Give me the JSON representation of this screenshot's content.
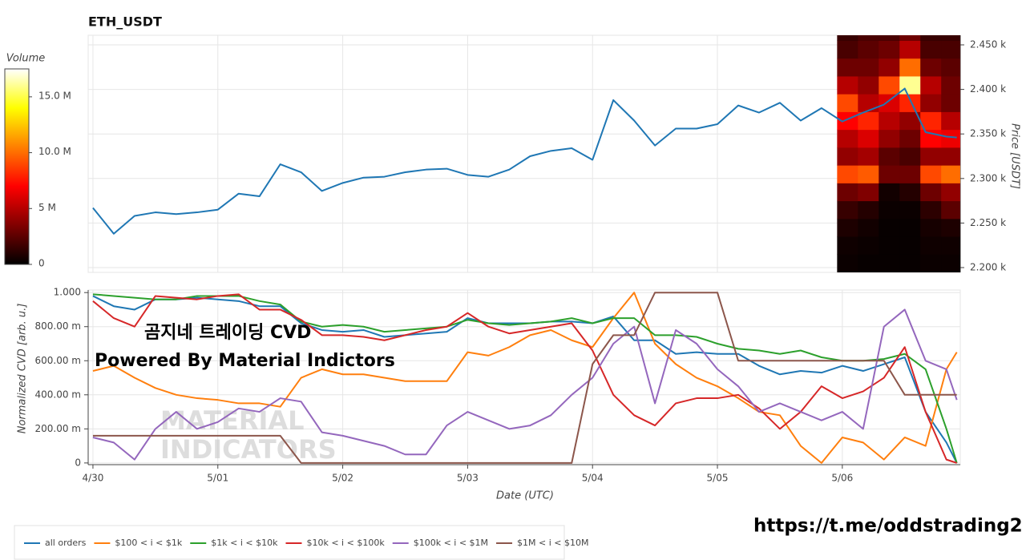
{
  "chart_data": [
    {
      "type": "line",
      "title": "ETH_USDT",
      "y_label": "Price [USDT]",
      "xlim": [
        "4/29 23:05",
        "5/06 22:40"
      ],
      "ylim": [
        2194.6,
        2460.8
      ],
      "yticks": [
        {
          "value": 2200,
          "label": "2.200 k"
        },
        {
          "value": 2250,
          "label": "2.250 k"
        },
        {
          "value": 2300,
          "label": "2.300 k"
        },
        {
          "value": 2350,
          "label": "2.350 k"
        },
        {
          "value": 2400,
          "label": "2.400 k"
        },
        {
          "value": 2450,
          "label": "2.450 k"
        }
      ],
      "grid": true,
      "x": [
        "4/30 00:00",
        "4/30 04:00",
        "4/30 08:00",
        "4/30 12:00",
        "4/30 16:00",
        "4/30 20:00",
        "5/01 00:00",
        "5/01 04:00",
        "5/01 08:00",
        "5/01 12:00",
        "5/01 16:00",
        "5/01 20:00",
        "5/02 00:00",
        "5/02 04:00",
        "5/02 08:00",
        "5/02 12:00",
        "5/02 16:00",
        "5/02 20:00",
        "5/03 00:00",
        "5/03 04:00",
        "5/03 08:00",
        "5/03 12:00",
        "5/03 16:00",
        "5/03 20:00",
        "5/04 00:00",
        "5/04 04:00",
        "5/04 08:00",
        "5/04 12:00",
        "5/04 16:00",
        "5/04 20:00",
        "5/05 00:00",
        "5/05 04:00",
        "5/05 08:00",
        "5/05 12:00",
        "5/05 16:00",
        "5/05 20:00",
        "5/06 00:00",
        "5/06 04:00",
        "5/06 08:00",
        "5/06 12:00",
        "5/06 16:00",
        "5/06 20:00",
        "5/06 22:00"
      ],
      "series": [
        {
          "color": "#1f77b4",
          "values": [
            2267,
            2238,
            2258,
            2262,
            2260,
            2262,
            2265,
            2283,
            2280,
            2316,
            2307,
            2286,
            2295,
            2301,
            2302,
            2307,
            2310,
            2311,
            2304,
            2302,
            2310,
            2325,
            2331,
            2334,
            2321,
            2388,
            2365,
            2337,
            2356,
            2356,
            2361,
            2382,
            2374,
            2385,
            2365,
            2379,
            2364,
            2374,
            2383,
            2401,
            2352,
            2347,
            2346
          ]
        }
      ],
      "heatmap": {
        "colormap": "hot",
        "x_edges": [
          "5/05 23:00",
          "5/06 03:00",
          "5/06 07:00",
          "5/06 11:00",
          "5/06 15:00",
          "5/06 19:00",
          "5/06 23:00"
        ],
        "y_edges": [
          2195,
          2215,
          2235,
          2255,
          2275,
          2295,
          2315,
          2335,
          2355,
          2375,
          2395,
          2415,
          2435,
          2455,
          2475
        ],
        "values": [
          [
            300000,
            200000,
            200000,
            200000,
            300000,
            300000
          ],
          [
            400000,
            300000,
            200000,
            200000,
            400000,
            400000
          ],
          [
            800000,
            500000,
            200000,
            200000,
            600000,
            800000
          ],
          [
            1500000,
            1000000,
            300000,
            300000,
            1200000,
            2500000
          ],
          [
            3000000,
            3500000,
            500000,
            1000000,
            3000000,
            4000000
          ],
          [
            9000000,
            9500000,
            3000000,
            3000000,
            9000000,
            10000000
          ],
          [
            4000000,
            4500000,
            2500000,
            2000000,
            4000000,
            4000000
          ],
          [
            5000000,
            6000000,
            4000000,
            3000000,
            7000000,
            6500000
          ],
          [
            7000000,
            8000000,
            5000000,
            4000000,
            8000000,
            5000000
          ],
          [
            9000000,
            5000000,
            6000000,
            8000000,
            4000000,
            3000000
          ],
          [
            5000000,
            4000000,
            9000000,
            16000000,
            5000000,
            3000000
          ],
          [
            3000000,
            3000000,
            4000000,
            10000000,
            3000000,
            2500000
          ],
          [
            2000000,
            2500000,
            3000000,
            5000000,
            2000000,
            2000000
          ],
          [
            1500000,
            2000000,
            2000000,
            3000000,
            1500000,
            1500000
          ]
        ],
        "colorbar_label": "Volume",
        "colorbar_lim": [
          0,
          17500000
        ],
        "colorbar_ticks": [
          0,
          {
            "value": 5000000,
            "label": "5 M"
          },
          {
            "value": 10000000,
            "label": "10.0 M"
          },
          {
            "value": 15000000,
            "label": "15.0 M"
          }
        ]
      }
    },
    {
      "type": "line",
      "x_label": "Date (UTC)",
      "y_label": "Normalized CVD [arb. u.]",
      "xlim": [
        "4/29 23:05",
        "5/06 22:40"
      ],
      "xticks": [
        "4/30",
        "5/01",
        "5/02",
        "5/03",
        "5/04",
        "5/05",
        "5/06"
      ],
      "ylim": [
        -0.01,
        1.015
      ],
      "yticks": [
        0,
        {
          "value": 0.2,
          "label": "200.00 m"
        },
        {
          "value": 0.4,
          "label": "400.00 m"
        },
        {
          "value": 0.6,
          "label": "600.00 m"
        },
        {
          "value": 0.8,
          "label": "800.00 m"
        },
        {
          "value": 1,
          "label": "1.000"
        }
      ],
      "grid": true,
      "legend": "bottom-left",
      "x": [
        "4/30 00:00",
        "4/30 04:00",
        "4/30 08:00",
        "4/30 12:00",
        "4/30 16:00",
        "4/30 20:00",
        "5/01 00:00",
        "5/01 04:00",
        "5/01 08:00",
        "5/01 12:00",
        "5/01 16:00",
        "5/01 20:00",
        "5/02 00:00",
        "5/02 04:00",
        "5/02 08:00",
        "5/02 12:00",
        "5/02 16:00",
        "5/02 20:00",
        "5/03 00:00",
        "5/03 04:00",
        "5/03 08:00",
        "5/03 12:00",
        "5/03 16:00",
        "5/03 20:00",
        "5/04 00:00",
        "5/04 04:00",
        "5/04 08:00",
        "5/04 12:00",
        "5/04 16:00",
        "5/04 20:00",
        "5/05 00:00",
        "5/05 04:00",
        "5/05 08:00",
        "5/05 12:00",
        "5/05 16:00",
        "5/05 20:00",
        "5/06 00:00",
        "5/06 04:00",
        "5/06 08:00",
        "5/06 12:00",
        "5/06 16:00",
        "5/06 20:00",
        "5/06 22:00"
      ],
      "series": [
        {
          "name": "all orders",
          "color": "#1f77b4",
          "values": [
            0.98,
            0.92,
            0.9,
            0.96,
            0.96,
            0.97,
            0.96,
            0.95,
            0.92,
            0.92,
            0.82,
            0.78,
            0.77,
            0.78,
            0.74,
            0.75,
            0.76,
            0.77,
            0.85,
            0.82,
            0.82,
            0.82,
            0.83,
            0.83,
            0.82,
            0.86,
            0.72,
            0.72,
            0.64,
            0.65,
            0.64,
            0.64,
            0.57,
            0.52,
            0.54,
            0.53,
            0.57,
            0.54,
            0.58,
            0.62,
            0.3,
            0.12,
            0
          ]
        },
        {
          "name": "$100 < i < $1k",
          "color": "#ff7f0e",
          "values": [
            0.54,
            0.57,
            0.5,
            0.44,
            0.4,
            0.38,
            0.37,
            0.35,
            0.35,
            0.33,
            0.5,
            0.55,
            0.52,
            0.52,
            0.5,
            0.48,
            0.48,
            0.48,
            0.65,
            0.63,
            0.68,
            0.75,
            0.78,
            0.72,
            0.68,
            0.85,
            1,
            0.7,
            0.58,
            0.5,
            0.45,
            0.38,
            0.3,
            0.28,
            0.1,
            0,
            0.15,
            0.12,
            0.02,
            0.15,
            0.1,
            0.55,
            0.65
          ]
        },
        {
          "name": "$1k < i < $10k",
          "color": "#2ca02c",
          "values": [
            0.99,
            0.98,
            0.97,
            0.96,
            0.96,
            0.98,
            0.98,
            0.98,
            0.95,
            0.93,
            0.83,
            0.8,
            0.81,
            0.8,
            0.77,
            0.78,
            0.79,
            0.8,
            0.84,
            0.82,
            0.81,
            0.82,
            0.83,
            0.85,
            0.82,
            0.85,
            0.85,
            0.75,
            0.75,
            0.74,
            0.7,
            0.67,
            0.66,
            0.64,
            0.66,
            0.62,
            0.6,
            0.6,
            0.61,
            0.64,
            0.55,
            0.2,
            0
          ]
        },
        {
          "name": "$10k < i < $100k",
          "color": "#d62728",
          "values": [
            0.95,
            0.85,
            0.8,
            0.98,
            0.97,
            0.96,
            0.98,
            0.99,
            0.9,
            0.9,
            0.84,
            0.75,
            0.75,
            0.74,
            0.72,
            0.75,
            0.78,
            0.8,
            0.88,
            0.8,
            0.76,
            0.78,
            0.8,
            0.82,
            0.66,
            0.4,
            0.28,
            0.22,
            0.35,
            0.38,
            0.38,
            0.4,
            0.32,
            0.2,
            0.3,
            0.45,
            0.38,
            0.42,
            0.5,
            0.68,
            0.3,
            0.02,
            0
          ]
        },
        {
          "name": "$100k < i < $1M",
          "color": "#9467bd",
          "values": [
            0.15,
            0.12,
            0.02,
            0.2,
            0.3,
            0.2,
            0.24,
            0.32,
            0.3,
            0.38,
            0.36,
            0.18,
            0.16,
            0.13,
            0.1,
            0.05,
            0.05,
            0.22,
            0.3,
            0.25,
            0.2,
            0.22,
            0.28,
            0.4,
            0.5,
            0.7,
            0.8,
            0.35,
            0.78,
            0.7,
            0.55,
            0.45,
            0.3,
            0.35,
            0.3,
            0.25,
            0.3,
            0.2,
            0.8,
            0.9,
            0.6,
            0.55,
            0.37
          ]
        },
        {
          "name": "$1M < i < $10M",
          "color": "#8c564b",
          "values": [
            0.16,
            0.16,
            0.16,
            0.16,
            0.16,
            0.16,
            0.16,
            0.16,
            0.16,
            0.16,
            0,
            0,
            0,
            0,
            0,
            0,
            0,
            0,
            0,
            0,
            0,
            0,
            0,
            0,
            0.58,
            0.75,
            0.75,
            1,
            1,
            1,
            1,
            0.6,
            0.6,
            0.6,
            0.6,
            0.6,
            0.6,
            0.6,
            0.6,
            0.4,
            0.4,
            0.4,
            0.4
          ]
        }
      ],
      "annotations": [
        "곰지네 트레이딩 CVD",
        "Powered By Material Indictors",
        "MATERIAL",
        "INDICATORS",
        "https://t.me/oddstrading2"
      ]
    }
  ]
}
